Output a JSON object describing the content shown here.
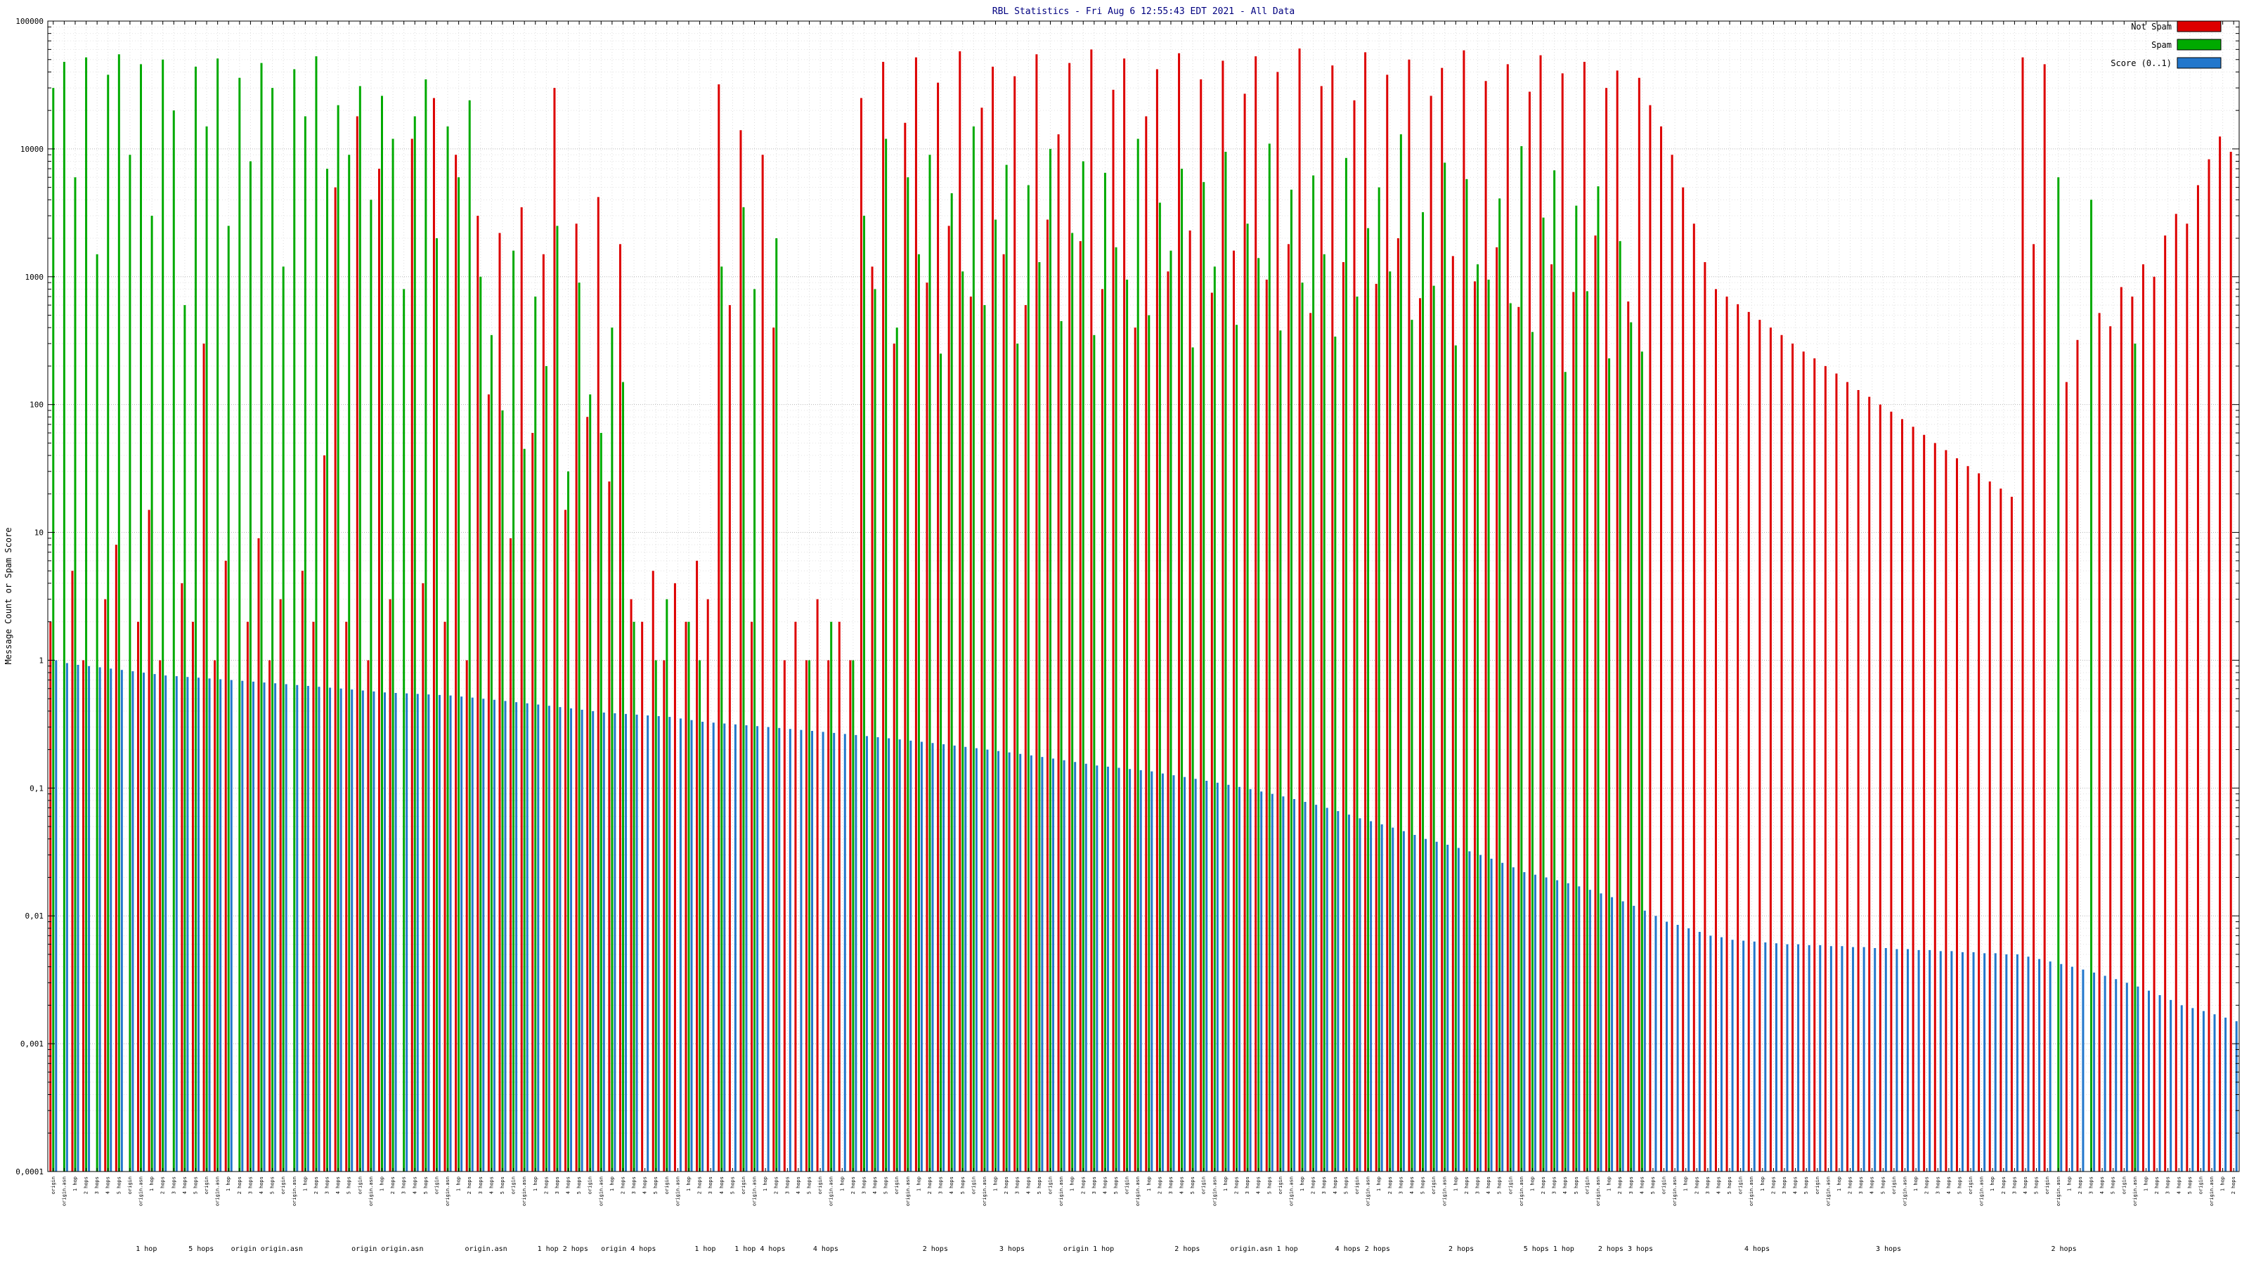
{
  "window": {
    "title": "RBL Statistics - Fri Aug 6 12:55:43 EDT 2021 - All Data"
  },
  "chart_data": {
    "type": "bar",
    "title": "RBL Statistics - Fri Aug 6 12:55:43 EDT 2021 - All Data",
    "ylabel": "Message Count or Spam Score",
    "y_scale": "log",
    "ylim": [
      0.0001,
      100000
    ],
    "y_tick_labels": [
      "100000",
      "10000",
      "1000",
      "100",
      "10",
      "1",
      "0,1",
      "0,01",
      "0,001",
      "0,0001"
    ],
    "grid": true,
    "legend_position": "top-right",
    "x_axis_note": "x-axis lists hundreds of rotated RBL test-name labels, illegible at capture resolution",
    "colors": {
      "not_spam": "#dd0000",
      "spam": "#00aa00",
      "score": "#2277cc",
      "grid_major": "#b5b5b5",
      "grid_minor": "#e4e4e4",
      "grid_vertical": "#dcdcdc",
      "axis": "#000000",
      "title": "#000080"
    },
    "x_tick_fragments": [
      "origin",
      "origin.asn",
      "1 hop",
      "2 hops",
      "3 hops",
      "4 hops",
      "5 hops"
    ],
    "x_group_labels": [
      {
        "x": 0.045,
        "label": "1 hop"
      },
      {
        "x": 0.07,
        "label": "5 hops"
      },
      {
        "x": 0.1,
        "label": "origin origin.asn"
      },
      {
        "x": 0.155,
        "label": "origin origin.asn"
      },
      {
        "x": 0.2,
        "label": "origin.asn"
      },
      {
        "x": 0.235,
        "label": "1 hop 2 hops"
      },
      {
        "x": 0.265,
        "label": "origin 4 hops"
      },
      {
        "x": 0.3,
        "label": "1 hop"
      },
      {
        "x": 0.325,
        "label": "1 hop 4 hops"
      },
      {
        "x": 0.355,
        "label": "4 hops"
      },
      {
        "x": 0.405,
        "label": "2 hops"
      },
      {
        "x": 0.44,
        "label": "3 hops"
      },
      {
        "x": 0.475,
        "label": "origin 1 hop"
      },
      {
        "x": 0.52,
        "label": "2 hops"
      },
      {
        "x": 0.555,
        "label": "origin.asn 1 hop"
      },
      {
        "x": 0.6,
        "label": "4 hops 2 hops"
      },
      {
        "x": 0.645,
        "label": "2 hops"
      },
      {
        "x": 0.685,
        "label": "5 hops 1 hop"
      },
      {
        "x": 0.72,
        "label": "2 hops 3 hops"
      },
      {
        "x": 0.78,
        "label": "4 hops"
      },
      {
        "x": 0.84,
        "label": "3 hops"
      },
      {
        "x": 0.92,
        "label": "2 hops"
      }
    ],
    "series": [
      {
        "name": "Not Spam",
        "color_key": "not_spam",
        "values": [
          2,
          0,
          5,
          1,
          0,
          3,
          8,
          0,
          2,
          15,
          1,
          0,
          4,
          2,
          300,
          1,
          6,
          0,
          2,
          9,
          1,
          3,
          0,
          5,
          2,
          40,
          5000,
          2,
          18000,
          1,
          7000,
          3,
          0,
          12000,
          4,
          25000,
          2,
          9000,
          1,
          3000,
          120,
          2200,
          9,
          3500,
          60,
          1500,
          30000,
          15,
          2600,
          80,
          4200,
          25,
          1800,
          3,
          2,
          5,
          1,
          4,
          2,
          6,
          3,
          32000,
          600,
          14000,
          2,
          9000,
          400,
          1,
          2,
          1,
          3,
          1,
          2,
          1,
          25000,
          1200,
          48000,
          300,
          16000,
          52000,
          900,
          33000,
          2500,
          58000,
          700,
          21000,
          44000,
          1500,
          37000,
          600,
          55000,
          2800,
          13000,
          47000,
          1900,
          60000,
          800,
          29000,
          51000,
          400,
          18000,
          42000,
          1100,
          56000,
          2300,
          35000,
          750,
          49000,
          1600,
          27000,
          53000,
          950,
          40000,
          1800,
          61000,
          520,
          31000,
          45000,
          1300,
          24000,
          57000,
          880,
          38000,
          2000,
          50000,
          680,
          26000,
          43000,
          1450,
          59000,
          920,
          34000,
          1700,
          46000,
          580,
          28000,
          54000,
          1250,
          39000,
          760,
          48000,
          2100,
          30000,
          41000,
          640,
          36000,
          22000,
          15000,
          9000,
          5000,
          2600,
          1300,
          800,
          700,
          610,
          530,
          460,
          400,
          350,
          300,
          260,
          230,
          200,
          175,
          150,
          130,
          115,
          100,
          88,
          77,
          67,
          58,
          50,
          44,
          38,
          33,
          29,
          25,
          22,
          19,
          52000,
          1800,
          46000,
          0,
          150,
          320,
          0,
          520,
          410,
          830,
          700,
          1250,
          1000,
          2100,
          3100,
          2600,
          5200,
          8300,
          12500,
          9500
        ]
      },
      {
        "name": "Spam",
        "color_key": "spam",
        "values": [
          30000,
          48000,
          6000,
          52000,
          1500,
          38000,
          55000,
          9000,
          46000,
          3000,
          50000,
          20000,
          600,
          44000,
          15000,
          51000,
          2500,
          36000,
          8000,
          47000,
          30000,
          1200,
          42000,
          18000,
          53000,
          7000,
          22000,
          9000,
          31000,
          4000,
          26000,
          12000,
          800,
          18000,
          35000,
          2000,
          15000,
          6000,
          24000,
          1000,
          350,
          90,
          1600,
          45,
          700,
          200,
          2500,
          30,
          900,
          120,
          60,
          400,
          150,
          2,
          0,
          1,
          3,
          0,
          2,
          1,
          0,
          1200,
          0,
          3500,
          800,
          0,
          2000,
          0,
          0,
          1,
          0,
          2,
          0,
          1,
          3000,
          800,
          12000,
          400,
          6000,
          1500,
          9000,
          250,
          4500,
          1100,
          15000,
          600,
          2800,
          7500,
          300,
          5200,
          1300,
          10000,
          450,
          2200,
          8000,
          350,
          6500,
          1700,
          950,
          12000,
          500,
          3800,
          1600,
          7000,
          280,
          5500,
          1200,
          9500,
          420,
          2600,
          1400,
          11000,
          380,
          4800,
          900,
          6200,
          1500,
          340,
          8500,
          700,
          2400,
          5000,
          1100,
          13000,
          460,
          3200,
          850,
          7800,
          290,
          5800,
          1250,
          950,
          4100,
          620,
          10500,
          370,
          2900,
          6800,
          180,
          3600,
          770,
          5100,
          230,
          1900,
          440,
          260,
          0,
          0,
          0,
          0,
          0,
          0,
          0,
          0,
          0,
          0,
          0,
          0,
          0,
          0,
          0,
          0,
          0,
          0,
          0,
          0,
          0,
          0,
          0,
          0,
          0,
          0,
          0,
          0,
          0,
          0,
          0,
          0,
          0,
          0,
          0,
          0,
          0,
          6000,
          0,
          0,
          4000,
          0,
          0,
          0,
          300,
          0,
          0,
          0,
          0,
          0,
          0,
          0,
          0,
          0
        ]
      },
      {
        "name": "Score (0..1)",
        "color_key": "score",
        "values": [
          1.0,
          0.95,
          0.92,
          0.9,
          0.88,
          0.86,
          0.84,
          0.82,
          0.8,
          0.78,
          0.76,
          0.75,
          0.74,
          0.73,
          0.72,
          0.71,
          0.7,
          0.69,
          0.68,
          0.67,
          0.66,
          0.65,
          0.64,
          0.63,
          0.62,
          0.61,
          0.6,
          0.59,
          0.58,
          0.57,
          0.56,
          0.555,
          0.55,
          0.545,
          0.54,
          0.535,
          0.53,
          0.52,
          0.51,
          0.5,
          0.49,
          0.48,
          0.47,
          0.46,
          0.45,
          0.44,
          0.43,
          0.42,
          0.41,
          0.4,
          0.39,
          0.385,
          0.38,
          0.375,
          0.37,
          0.365,
          0.36,
          0.35,
          0.34,
          0.33,
          0.325,
          0.32,
          0.315,
          0.31,
          0.305,
          0.3,
          0.295,
          0.29,
          0.285,
          0.28,
          0.275,
          0.27,
          0.265,
          0.26,
          0.255,
          0.25,
          0.245,
          0.24,
          0.235,
          0.23,
          0.225,
          0.22,
          0.215,
          0.21,
          0.205,
          0.2,
          0.195,
          0.19,
          0.185,
          0.18,
          0.175,
          0.17,
          0.165,
          0.16,
          0.155,
          0.15,
          0.147,
          0.144,
          0.141,
          0.138,
          0.135,
          0.13,
          0.126,
          0.122,
          0.118,
          0.114,
          0.11,
          0.106,
          0.102,
          0.098,
          0.094,
          0.09,
          0.086,
          0.082,
          0.078,
          0.074,
          0.07,
          0.066,
          0.062,
          0.058,
          0.055,
          0.052,
          0.049,
          0.046,
          0.043,
          0.04,
          0.038,
          0.036,
          0.034,
          0.032,
          0.03,
          0.028,
          0.026,
          0.024,
          0.022,
          0.021,
          0.02,
          0.019,
          0.018,
          0.017,
          0.016,
          0.015,
          0.014,
          0.013,
          0.012,
          0.011,
          0.01,
          0.009,
          0.0085,
          0.008,
          0.0075,
          0.007,
          0.0068,
          0.0065,
          0.0064,
          0.0063,
          0.0062,
          0.0061,
          0.006,
          0.006,
          0.0059,
          0.0059,
          0.0058,
          0.0058,
          0.0057,
          0.0057,
          0.0056,
          0.0056,
          0.0055,
          0.0055,
          0.0054,
          0.0054,
          0.0053,
          0.0053,
          0.0052,
          0.0052,
          0.0051,
          0.0051,
          0.005,
          0.005,
          0.0048,
          0.0046,
          0.0044,
          0.0042,
          0.004,
          0.0038,
          0.0036,
          0.0034,
          0.0032,
          0.003,
          0.0028,
          0.0026,
          0.0024,
          0.0022,
          0.002,
          0.0019,
          0.0018,
          0.0017,
          0.0016,
          0.0015
        ]
      }
    ]
  }
}
